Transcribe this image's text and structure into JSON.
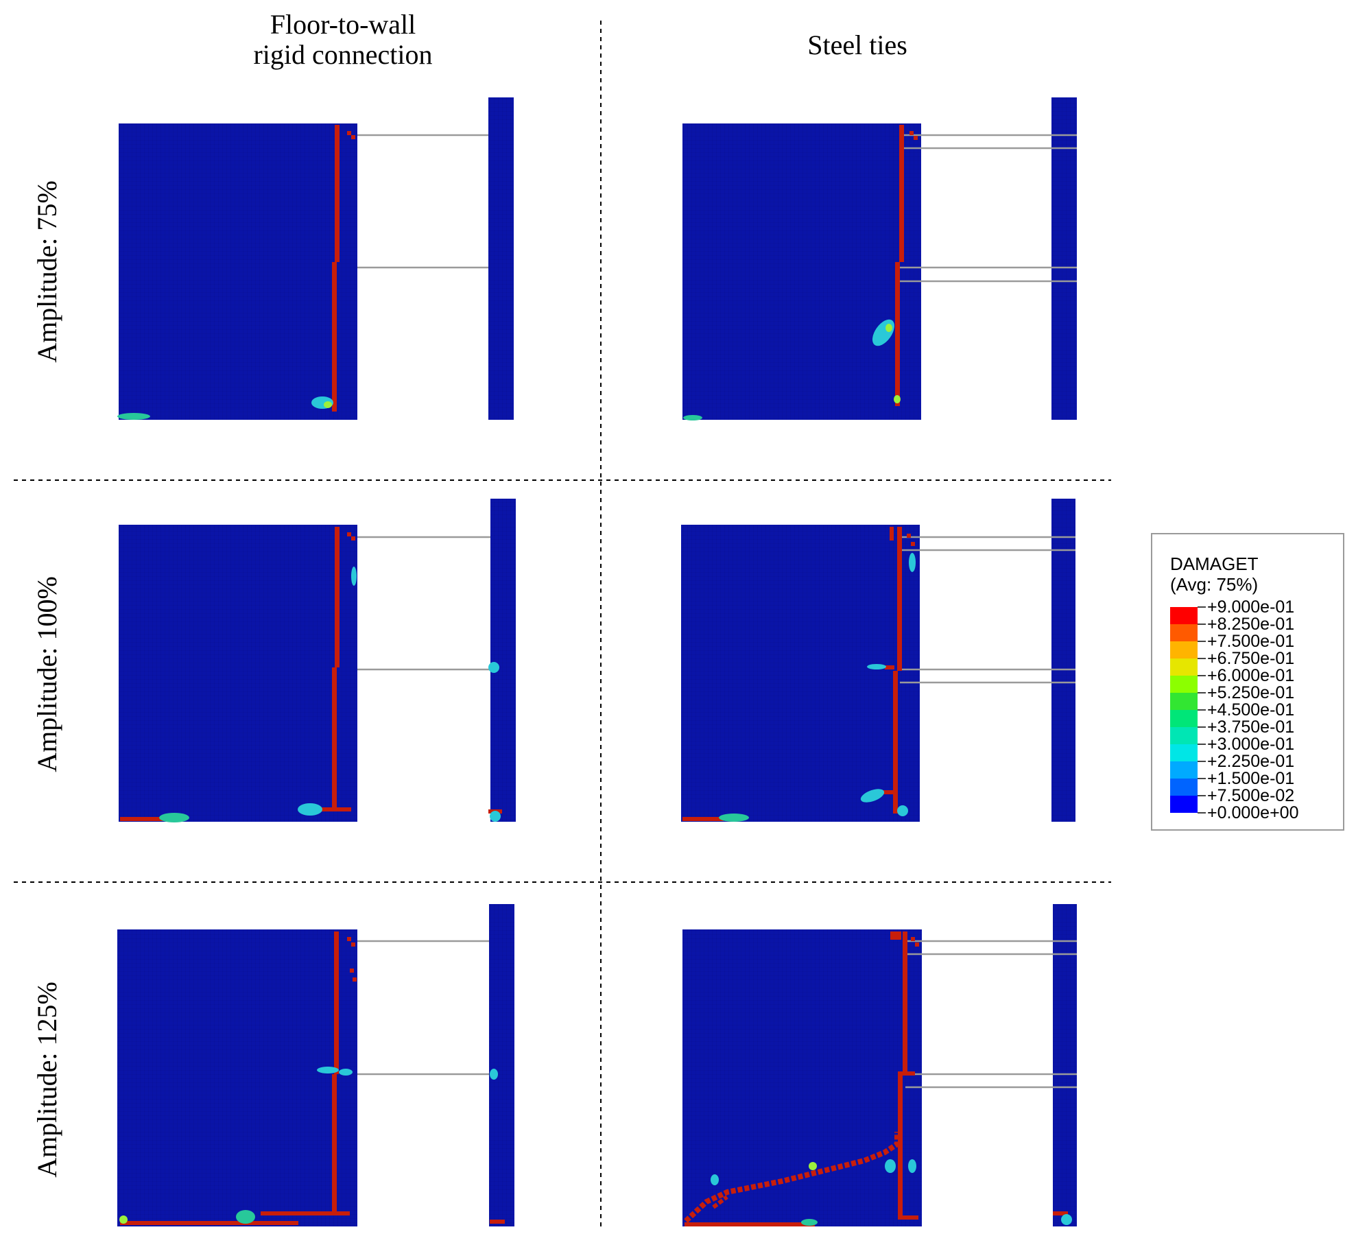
{
  "columns": [
    {
      "title": "Floor-to-wall\nrigid connection"
    },
    {
      "title": "Steel ties"
    }
  ],
  "rows": [
    {
      "label": "Amplitude: 75%"
    },
    {
      "label": "Amplitude: 100%"
    },
    {
      "label": "Amplitude: 125%"
    }
  ],
  "legend": {
    "variable": "DAMAGET",
    "averaging": "(Avg: 75%)",
    "levels": [
      "+9.000e-01",
      "+8.250e-01",
      "+7.500e-01",
      "+6.750e-01",
      "+6.000e-01",
      "+5.250e-01",
      "+4.500e-01",
      "+3.750e-01",
      "+3.000e-01",
      "+2.250e-01",
      "+1.500e-01",
      "+7.500e-02",
      "+0.000e+00"
    ],
    "colors": [
      "#ff0000",
      "#ff5a00",
      "#ffb400",
      "#e6e600",
      "#8cff00",
      "#32e632",
      "#00e678",
      "#00e6b4",
      "#00e6e6",
      "#00aaff",
      "#0064ff",
      "#0000ff"
    ]
  },
  "colors": {
    "panel": "#0a14a8",
    "crack": "#c81e0a",
    "tie": "#9a9a9a",
    "divider": "#000000"
  }
}
